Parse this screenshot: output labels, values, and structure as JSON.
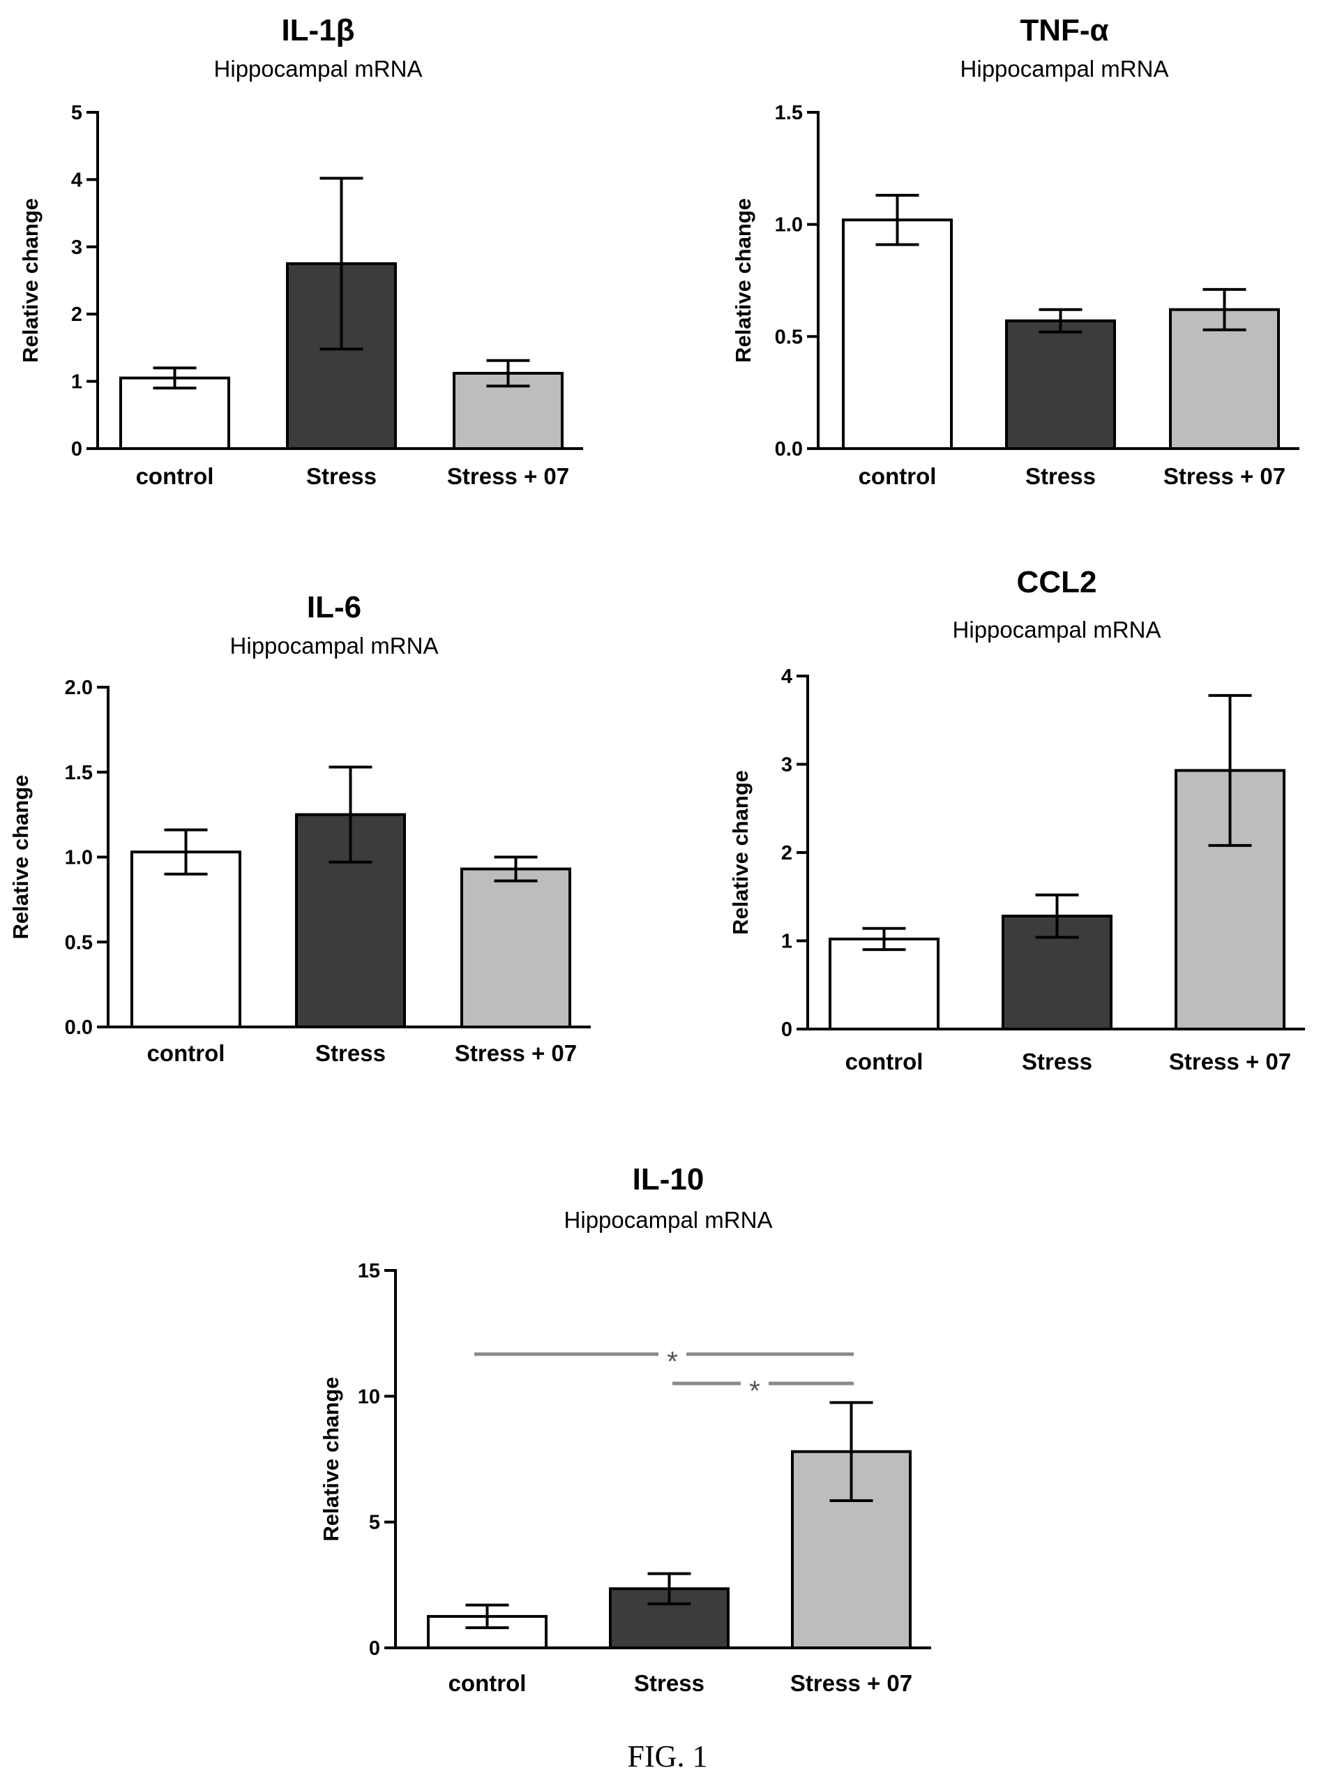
{
  "figure_caption": "FIG. 1",
  "colors": {
    "control": "#ffffff",
    "stress": "#3c3c3c",
    "stress_07": "#bdbdbd",
    "significance_line": "#8a8a8a"
  },
  "chart_data": [
    {
      "type": "bar",
      "title": "IL-1β",
      "subtitle": "Hippocampal mRNA",
      "ylabel": "Relative change",
      "categories": [
        "control",
        "Stress",
        "Stress + 07"
      ],
      "values": [
        1.05,
        2.75,
        1.12
      ],
      "error": [
        0.15,
        1.27,
        0.19
      ],
      "ylim": [
        0,
        5
      ],
      "yticks": [
        "0",
        "1",
        "2",
        "3",
        "4",
        "5"
      ]
    },
    {
      "type": "bar",
      "title": "TNF-α",
      "subtitle": "Hippocampal mRNA",
      "ylabel": "Relative change",
      "categories": [
        "control",
        "Stress",
        "Stress + 07"
      ],
      "values": [
        1.02,
        0.57,
        0.62
      ],
      "error": [
        0.11,
        0.05,
        0.09
      ],
      "ylim": [
        0,
        1.5
      ],
      "yticks": [
        "0.0",
        "0.5",
        "1.0",
        "1.5"
      ]
    },
    {
      "type": "bar",
      "title": "IL-6",
      "subtitle": "Hippocampal mRNA",
      "ylabel": "Relative change",
      "categories": [
        "control",
        "Stress",
        "Stress + 07"
      ],
      "values": [
        1.03,
        1.25,
        0.93
      ],
      "error": [
        0.13,
        0.28,
        0.07
      ],
      "ylim": [
        0,
        2.0
      ],
      "yticks": [
        "0.0",
        "0.5",
        "1.0",
        "1.5",
        "2.0"
      ]
    },
    {
      "type": "bar",
      "title": "CCL2",
      "subtitle": "Hippocampal mRNA",
      "ylabel": "Relative change",
      "categories": [
        "control",
        "Stress",
        "Stress + 07"
      ],
      "values": [
        1.02,
        1.28,
        2.93
      ],
      "error": [
        0.12,
        0.24,
        0.85
      ],
      "ylim": [
        0,
        4
      ],
      "yticks": [
        "0",
        "1",
        "2",
        "3",
        "4"
      ]
    },
    {
      "type": "bar",
      "title": "IL-10",
      "subtitle": "Hippocampal mRNA",
      "ylabel": "Relative change",
      "categories": [
        "control",
        "Stress",
        "Stress + 07"
      ],
      "values": [
        1.25,
        2.35,
        7.8
      ],
      "error": [
        0.45,
        0.6,
        1.95
      ],
      "ylim": [
        0,
        15
      ],
      "yticks": [
        "0",
        "5",
        "10",
        "15"
      ],
      "significance": [
        {
          "from": "control",
          "to": "Stress + 07",
          "label": "*"
        },
        {
          "from": "Stress",
          "to": "Stress + 07",
          "label": "*"
        }
      ]
    }
  ]
}
